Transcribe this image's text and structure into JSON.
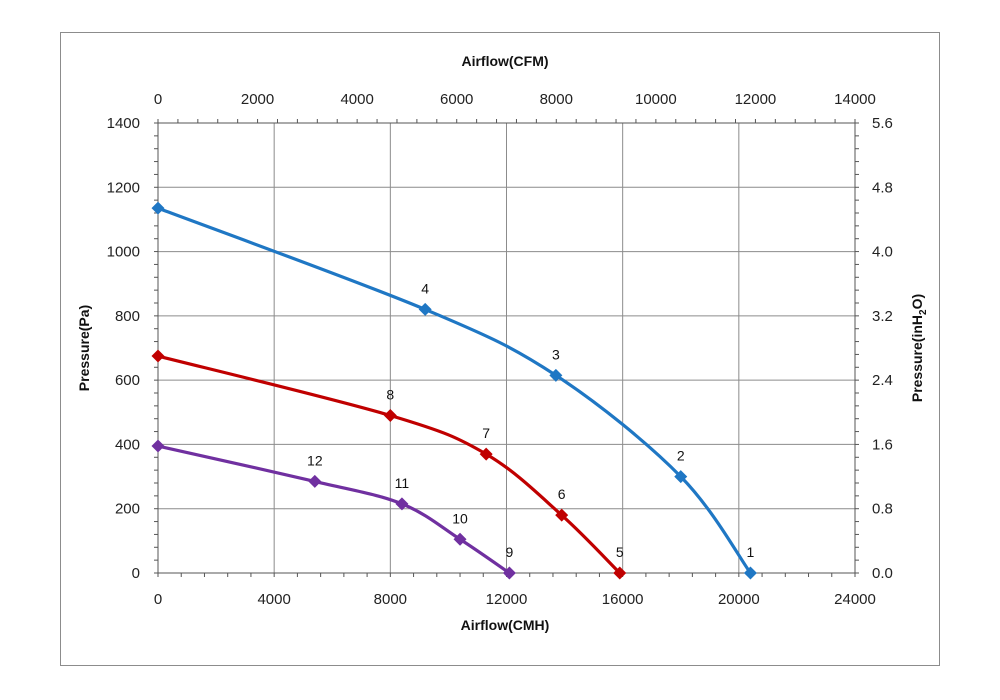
{
  "chart_data": {
    "type": "line",
    "title": "",
    "x_top_label": "Airflow(CFM)",
    "x_bottom_label": "Airflow(CMH)",
    "y_left_label": "Pressure(Pa)",
    "y_right_label_main": "Pressure(inH",
    "y_right_label_sub": "2",
    "y_right_label_end": "O)",
    "x_bottom_range": [
      0,
      24000
    ],
    "x_bottom_ticks": [
      "0",
      "4000",
      "8000",
      "12000",
      "16000",
      "20000",
      "24000"
    ],
    "x_top_range": [
      0,
      14000
    ],
    "x_top_ticks": [
      "0",
      "2000",
      "4000",
      "6000",
      "8000",
      "10000",
      "12000",
      "14000"
    ],
    "y_left_range": [
      0,
      1400
    ],
    "y_left_ticks": [
      "0",
      "200",
      "400",
      "600",
      "800",
      "1000",
      "1200",
      "1400"
    ],
    "y_right_range": [
      0,
      5.6
    ],
    "y_right_ticks": [
      "0.0",
      "0.8",
      "1.6",
      "2.4",
      "3.2",
      "4.0",
      "4.8",
      "5.6"
    ],
    "grid": true,
    "series": [
      {
        "color": "#1F77C4",
        "points": [
          {
            "x": 20400,
            "y": 0,
            "label": "1"
          },
          {
            "x": 18000,
            "y": 300,
            "label": "2"
          },
          {
            "x": 13700,
            "y": 615,
            "label": "3"
          },
          {
            "x": 9200,
            "y": 820,
            "label": "4"
          },
          {
            "x": 0,
            "y": 1135,
            "label": ""
          }
        ]
      },
      {
        "color": "#C00000",
        "points": [
          {
            "x": 15900,
            "y": 0,
            "label": "5"
          },
          {
            "x": 13900,
            "y": 180,
            "label": "6"
          },
          {
            "x": 11300,
            "y": 370,
            "label": "7"
          },
          {
            "x": 8000,
            "y": 490,
            "label": "8"
          },
          {
            "x": 0,
            "y": 675,
            "label": ""
          }
        ]
      },
      {
        "color": "#7030A0",
        "points": [
          {
            "x": 12100,
            "y": 0,
            "label": "9"
          },
          {
            "x": 10400,
            "y": 105,
            "label": "10"
          },
          {
            "x": 8400,
            "y": 215,
            "label": "11"
          },
          {
            "x": 5400,
            "y": 285,
            "label": "12"
          },
          {
            "x": 0,
            "y": 395,
            "label": ""
          }
        ]
      }
    ]
  }
}
